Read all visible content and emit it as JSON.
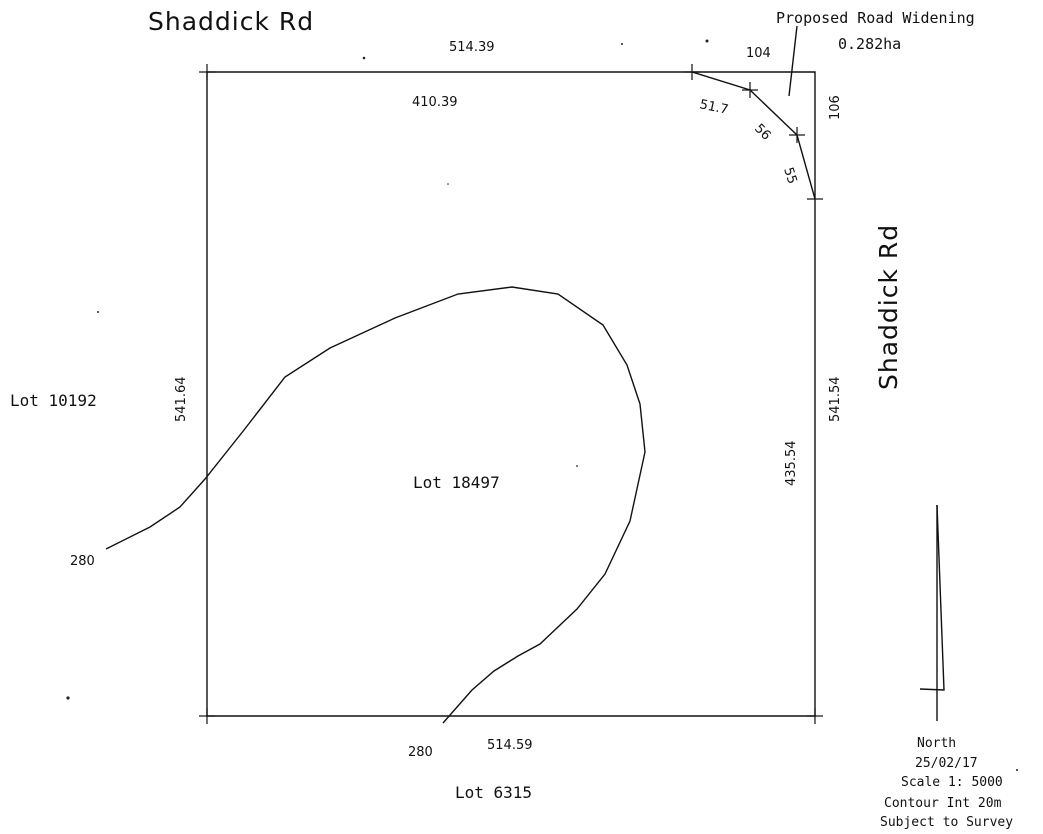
{
  "plan": {
    "roads": {
      "top": "Shaddick Rd",
      "east": "Shaddick Rd"
    },
    "lots": {
      "subject": "Lot 18497",
      "west": "Lot 10192",
      "south": "Lot 6315"
    },
    "dimensions": {
      "north_outer": "514.39",
      "north_inner": "410.39",
      "north_widening": "104",
      "east_widening": "106",
      "east_outer": "541.54",
      "east_inner": "435.54",
      "west": "541.64",
      "south": "514.59",
      "chord_1": "51.7",
      "chord_2": "56",
      "chord_3": "55"
    },
    "road_widening": {
      "label": "Proposed Road Widening",
      "area": "0.282ha"
    },
    "contour": {
      "west_label": "280",
      "south_label": "280"
    },
    "notes": {
      "north": "North",
      "date": "25/02/17",
      "scale": "Scale 1: 5000",
      "contour_interval": "Contour Int 20m",
      "survey": "Subject to Survey"
    }
  }
}
